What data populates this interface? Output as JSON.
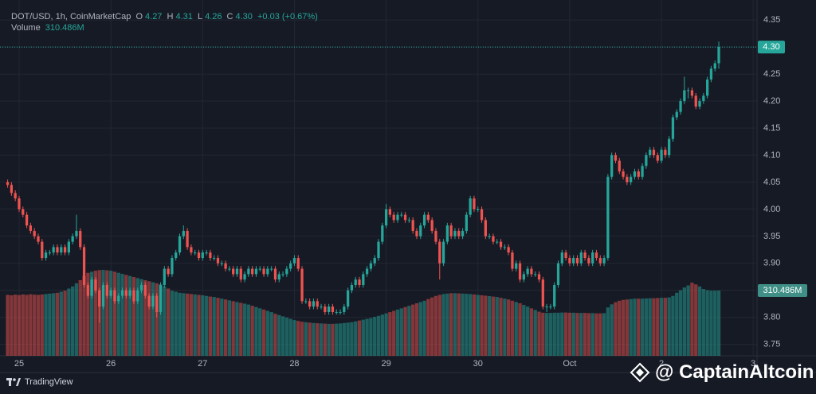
{
  "header": {
    "symbol": "DOT/USD, 1h, CoinMarketCap",
    "ohlc": [
      [
        "O",
        "4.27"
      ],
      [
        "H",
        "4.31"
      ],
      [
        "L",
        "4.26"
      ],
      [
        "C",
        "4.30"
      ]
    ],
    "change": "+0.03 (+0.67%)",
    "volume_title": "Volume",
    "volume": "310.486M"
  },
  "footer": {
    "brand": "TradingView",
    "watermark": "@ CaptainAltcoin"
  },
  "chart_data": {
    "type": "candlestick",
    "up_color": "#26a69a",
    "down_color": "#ef5350",
    "grid": true,
    "xlim": [
      -2,
      196
    ],
    "ylim": [
      3.729,
      4.387
    ],
    "volume_lim": [
      0,
      1000
    ],
    "xticks": [
      {
        "value": 3,
        "label": "25"
      },
      {
        "value": 27,
        "label": "26"
      },
      {
        "value": 51,
        "label": "27"
      },
      {
        "value": 75,
        "label": "28"
      },
      {
        "value": 99,
        "label": "29"
      },
      {
        "value": 123,
        "label": "30"
      },
      {
        "value": 147,
        "label": "Oct"
      },
      {
        "value": 171,
        "label": "2"
      },
      {
        "value": 195,
        "label": "3"
      }
    ],
    "yticks": [
      3.75,
      {
        "value": 3.8,
        "label": "3.80"
      },
      3.85,
      {
        "value": 3.9,
        "label": "3.90"
      },
      3.95,
      {
        "value": 4.0,
        "label": "4.00"
      },
      4.05,
      {
        "value": 4.1,
        "label": "4.10"
      },
      4.15,
      {
        "value": 4.2,
        "label": "4.20"
      },
      4.25,
      {
        "value": 4.3,
        "label": "4.30"
      },
      4.35
    ],
    "last_price": {
      "value": 4.3,
      "label": "4.30"
    },
    "last_volume": {
      "value": 310.486,
      "label": "310.486M"
    },
    "candles": [
      [
        4.05,
        4.055,
        4.04,
        4.045
      ],
      [
        4.045,
        4.05,
        4.025,
        4.03
      ],
      [
        4.03,
        4.035,
        4.015,
        4.02
      ],
      [
        4.02,
        4.025,
        3.995,
        4.0
      ],
      [
        4.0,
        4.005,
        3.985,
        3.99
      ],
      [
        3.99,
        3.995,
        3.965,
        3.97
      ],
      [
        3.97,
        3.975,
        3.955,
        3.96
      ],
      [
        3.96,
        3.965,
        3.945,
        3.95
      ],
      [
        3.95,
        3.955,
        3.935,
        3.94
      ],
      [
        3.94,
        3.945,
        3.905,
        3.91
      ],
      [
        3.91,
        3.925,
        3.905,
        3.92
      ],
      [
        3.92,
        3.925,
        3.915,
        3.92
      ],
      [
        3.92,
        3.935,
        3.915,
        3.93
      ],
      [
        3.93,
        3.935,
        3.915,
        3.92
      ],
      [
        3.92,
        3.935,
        3.915,
        3.93
      ],
      [
        3.93,
        3.935,
        3.915,
        3.92
      ],
      [
        3.92,
        3.945,
        3.915,
        3.94
      ],
      [
        3.94,
        3.955,
        3.935,
        3.95
      ],
      [
        3.95,
        3.99,
        3.945,
        3.96
      ],
      [
        3.96,
        3.965,
        3.925,
        3.93
      ],
      [
        3.93,
        3.935,
        3.855,
        3.86
      ],
      [
        3.86,
        3.865,
        3.835,
        3.84
      ],
      [
        3.84,
        3.875,
        3.835,
        3.87
      ],
      [
        3.87,
        3.875,
        3.845,
        3.85
      ],
      [
        3.85,
        3.855,
        3.79,
        3.82
      ],
      [
        3.82,
        3.865,
        3.815,
        3.86
      ],
      [
        3.86,
        3.865,
        3.835,
        3.84
      ],
      [
        3.84,
        3.855,
        3.835,
        3.85
      ],
      [
        3.85,
        3.855,
        3.825,
        3.83
      ],
      [
        3.83,
        3.845,
        3.825,
        3.84
      ],
      [
        3.84,
        3.855,
        3.835,
        3.85
      ],
      [
        3.85,
        3.855,
        3.835,
        3.84
      ],
      [
        3.84,
        3.855,
        3.835,
        3.85
      ],
      [
        3.85,
        3.855,
        3.825,
        3.83
      ],
      [
        3.83,
        3.855,
        3.825,
        3.85
      ],
      [
        3.85,
        3.865,
        3.845,
        3.86
      ],
      [
        3.86,
        3.865,
        3.835,
        3.84
      ],
      [
        3.84,
        3.845,
        3.815,
        3.82
      ],
      [
        3.82,
        3.845,
        3.815,
        3.84
      ],
      [
        3.84,
        3.845,
        3.8,
        3.81
      ],
      [
        3.81,
        3.865,
        3.805,
        3.86
      ],
      [
        3.86,
        3.895,
        3.855,
        3.89
      ],
      [
        3.89,
        3.895,
        3.875,
        3.88
      ],
      [
        3.88,
        3.915,
        3.875,
        3.91
      ],
      [
        3.91,
        3.925,
        3.905,
        3.92
      ],
      [
        3.92,
        3.955,
        3.915,
        3.95
      ],
      [
        3.95,
        3.97,
        3.945,
        3.96
      ],
      [
        3.96,
        3.965,
        3.925,
        3.93
      ],
      [
        3.93,
        3.935,
        3.915,
        3.92
      ],
      [
        3.92,
        3.925,
        3.915,
        3.92
      ],
      [
        3.92,
        3.925,
        3.905,
        3.91
      ],
      [
        3.91,
        3.925,
        3.905,
        3.92
      ],
      [
        3.92,
        3.925,
        3.915,
        3.92
      ],
      [
        3.92,
        3.925,
        3.905,
        3.91
      ],
      [
        3.91,
        3.915,
        3.905,
        3.91
      ],
      [
        3.91,
        3.915,
        3.895,
        3.9
      ],
      [
        3.9,
        3.905,
        3.895,
        3.9
      ],
      [
        3.9,
        3.905,
        3.885,
        3.89
      ],
      [
        3.89,
        3.895,
        3.885,
        3.89
      ],
      [
        3.89,
        3.895,
        3.875,
        3.88
      ],
      [
        3.88,
        3.895,
        3.875,
        3.89
      ],
      [
        3.89,
        3.895,
        3.865,
        3.87
      ],
      [
        3.87,
        3.885,
        3.865,
        3.88
      ],
      [
        3.88,
        3.895,
        3.875,
        3.89
      ],
      [
        3.89,
        3.895,
        3.875,
        3.88
      ],
      [
        3.88,
        3.895,
        3.875,
        3.89
      ],
      [
        3.89,
        3.895,
        3.885,
        3.89
      ],
      [
        3.89,
        3.895,
        3.875,
        3.88
      ],
      [
        3.88,
        3.895,
        3.875,
        3.89
      ],
      [
        3.89,
        3.895,
        3.885,
        3.89
      ],
      [
        3.89,
        3.895,
        3.865,
        3.87
      ],
      [
        3.87,
        3.885,
        3.865,
        3.88
      ],
      [
        3.88,
        3.885,
        3.875,
        3.88
      ],
      [
        3.88,
        3.895,
        3.875,
        3.89
      ],
      [
        3.89,
        3.905,
        3.885,
        3.9
      ],
      [
        3.9,
        3.915,
        3.895,
        3.91
      ],
      [
        3.91,
        3.915,
        3.885,
        3.89
      ],
      [
        3.89,
        3.895,
        3.825,
        3.83
      ],
      [
        3.83,
        3.835,
        3.825,
        3.83
      ],
      [
        3.83,
        3.835,
        3.815,
        3.82
      ],
      [
        3.82,
        3.835,
        3.815,
        3.83
      ],
      [
        3.83,
        3.835,
        3.815,
        3.82
      ],
      [
        3.82,
        3.825,
        3.815,
        3.82
      ],
      [
        3.82,
        3.825,
        3.805,
        3.81
      ],
      [
        3.81,
        3.825,
        3.805,
        3.82
      ],
      [
        3.82,
        3.825,
        3.805,
        3.81
      ],
      [
        3.81,
        3.815,
        3.805,
        3.81
      ],
      [
        3.81,
        3.815,
        3.805,
        3.81
      ],
      [
        3.81,
        3.825,
        3.805,
        3.82
      ],
      [
        3.82,
        3.855,
        3.815,
        3.85
      ],
      [
        3.85,
        3.865,
        3.845,
        3.86
      ],
      [
        3.86,
        3.875,
        3.855,
        3.87
      ],
      [
        3.87,
        3.875,
        3.855,
        3.86
      ],
      [
        3.86,
        3.885,
        3.855,
        3.88
      ],
      [
        3.88,
        3.895,
        3.875,
        3.89
      ],
      [
        3.89,
        3.905,
        3.885,
        3.9
      ],
      [
        3.9,
        3.915,
        3.895,
        3.91
      ],
      [
        3.91,
        3.945,
        3.905,
        3.94
      ],
      [
        3.94,
        3.975,
        3.935,
        3.97
      ],
      [
        3.97,
        4.01,
        3.965,
        4.0
      ],
      [
        4.0,
        4.005,
        3.985,
        3.99
      ],
      [
        3.99,
        3.995,
        3.975,
        3.98
      ],
      [
        3.98,
        3.995,
        3.975,
        3.99
      ],
      [
        3.99,
        3.995,
        3.985,
        3.99
      ],
      [
        3.99,
        3.995,
        3.975,
        3.98
      ],
      [
        3.98,
        3.985,
        3.975,
        3.98
      ],
      [
        3.98,
        3.985,
        3.955,
        3.96
      ],
      [
        3.96,
        3.965,
        3.945,
        3.95
      ],
      [
        3.95,
        3.975,
        3.945,
        3.97
      ],
      [
        3.97,
        3.995,
        3.965,
        3.99
      ],
      [
        3.99,
        3.995,
        3.975,
        3.98
      ],
      [
        3.98,
        3.985,
        3.955,
        3.96
      ],
      [
        3.96,
        3.965,
        3.935,
        3.94
      ],
      [
        3.94,
        3.945,
        3.87,
        3.9
      ],
      [
        3.9,
        3.945,
        3.895,
        3.94
      ],
      [
        3.94,
        3.975,
        3.935,
        3.97
      ],
      [
        3.97,
        3.975,
        3.945,
        3.95
      ],
      [
        3.95,
        3.965,
        3.945,
        3.96
      ],
      [
        3.96,
        3.965,
        3.945,
        3.95
      ],
      [
        3.95,
        3.965,
        3.945,
        3.96
      ],
      [
        3.96,
        3.995,
        3.955,
        3.99
      ],
      [
        3.99,
        4.025,
        3.985,
        4.02
      ],
      [
        4.02,
        4.025,
        3.995,
        4.0
      ],
      [
        4.0,
        4.005,
        3.995,
        4.0
      ],
      [
        4.0,
        4.005,
        3.975,
        3.98
      ],
      [
        3.98,
        3.985,
        3.945,
        3.95
      ],
      [
        3.95,
        3.955,
        3.945,
        3.95
      ],
      [
        3.95,
        3.955,
        3.935,
        3.94
      ],
      [
        3.94,
        3.945,
        3.935,
        3.94
      ],
      [
        3.94,
        3.945,
        3.925,
        3.93
      ],
      [
        3.93,
        3.935,
        3.925,
        3.93
      ],
      [
        3.93,
        3.935,
        3.915,
        3.92
      ],
      [
        3.92,
        3.925,
        3.885,
        3.89
      ],
      [
        3.89,
        3.905,
        3.885,
        3.9
      ],
      [
        3.9,
        3.905,
        3.865,
        3.87
      ],
      [
        3.87,
        3.885,
        3.865,
        3.88
      ],
      [
        3.88,
        3.895,
        3.875,
        3.89
      ],
      [
        3.89,
        3.895,
        3.875,
        3.88
      ],
      [
        3.88,
        3.885,
        3.875,
        3.88
      ],
      [
        3.88,
        3.885,
        3.865,
        3.87
      ],
      [
        3.87,
        3.875,
        3.815,
        3.82
      ],
      [
        3.82,
        3.825,
        3.81,
        3.82
      ],
      [
        3.82,
        3.825,
        3.815,
        3.82
      ],
      [
        3.82,
        3.865,
        3.815,
        3.86
      ],
      [
        3.86,
        3.905,
        3.855,
        3.9
      ],
      [
        3.9,
        3.925,
        3.895,
        3.92
      ],
      [
        3.92,
        3.925,
        3.905,
        3.91
      ],
      [
        3.91,
        3.915,
        3.895,
        3.9
      ],
      [
        3.9,
        3.915,
        3.895,
        3.91
      ],
      [
        3.91,
        3.915,
        3.895,
        3.9
      ],
      [
        3.9,
        3.925,
        3.895,
        3.92
      ],
      [
        3.92,
        3.925,
        3.905,
        3.91
      ],
      [
        3.91,
        3.915,
        3.895,
        3.9
      ],
      [
        3.9,
        3.925,
        3.895,
        3.92
      ],
      [
        3.92,
        3.925,
        3.905,
        3.91
      ],
      [
        3.91,
        3.915,
        3.895,
        3.9
      ],
      [
        3.9,
        3.915,
        3.895,
        3.91
      ],
      [
        3.91,
        4.065,
        3.905,
        4.06
      ],
      [
        4.06,
        4.105,
        4.055,
        4.1
      ],
      [
        4.1,
        4.105,
        4.085,
        4.09
      ],
      [
        4.09,
        4.095,
        4.065,
        4.07
      ],
      [
        4.07,
        4.075,
        4.055,
        4.06
      ],
      [
        4.06,
        4.065,
        4.045,
        4.05
      ],
      [
        4.05,
        4.065,
        4.045,
        4.06
      ],
      [
        4.06,
        4.075,
        4.055,
        4.07
      ],
      [
        4.07,
        4.075,
        4.055,
        4.06
      ],
      [
        4.06,
        4.085,
        4.055,
        4.08
      ],
      [
        4.08,
        4.105,
        4.075,
        4.1
      ],
      [
        4.1,
        4.115,
        4.095,
        4.11
      ],
      [
        4.11,
        4.115,
        4.095,
        4.1
      ],
      [
        4.1,
        4.105,
        4.085,
        4.09
      ],
      [
        4.09,
        4.115,
        4.085,
        4.11
      ],
      [
        4.11,
        4.115,
        4.095,
        4.1
      ],
      [
        4.1,
        4.135,
        4.095,
        4.13
      ],
      [
        4.13,
        4.175,
        4.125,
        4.17
      ],
      [
        4.17,
        4.185,
        4.165,
        4.18
      ],
      [
        4.18,
        4.205,
        4.175,
        4.2
      ],
      [
        4.2,
        4.245,
        4.195,
        4.22
      ],
      [
        4.22,
        4.225,
        4.205,
        4.22
      ],
      [
        4.22,
        4.225,
        4.205,
        4.21
      ],
      [
        4.21,
        4.215,
        4.185,
        4.19
      ],
      [
        4.19,
        4.205,
        4.185,
        4.2
      ],
      [
        4.2,
        4.215,
        4.195,
        4.21
      ],
      [
        4.21,
        4.245,
        4.205,
        4.24
      ],
      [
        4.24,
        4.265,
        4.235,
        4.26
      ],
      [
        4.26,
        4.275,
        4.255,
        4.27
      ],
      [
        4.27,
        4.31,
        4.26,
        4.3
      ]
    ],
    "volume": [
      290,
      288,
      291,
      289,
      292,
      290,
      293,
      291,
      290,
      292,
      294,
      296,
      298,
      300,
      305,
      310,
      320,
      330,
      345,
      360,
      380,
      395,
      400,
      405,
      408,
      409,
      407,
      405,
      400,
      395,
      390,
      385,
      380,
      375,
      370,
      365,
      360,
      355,
      350,
      345,
      340,
      330,
      320,
      310,
      305,
      300,
      298,
      296,
      294,
      292,
      290,
      288,
      285,
      282,
      280,
      276,
      272,
      268,
      264,
      260,
      256,
      252,
      248,
      244,
      238,
      232,
      226,
      220,
      214,
      208,
      200,
      194,
      188,
      182,
      176,
      170,
      166,
      162,
      160,
      158,
      156,
      155,
      154,
      153,
      152,
      152,
      153,
      154,
      156,
      158,
      160,
      164,
      168,
      172,
      176,
      180,
      185,
      190,
      196,
      202,
      208,
      214,
      220,
      226,
      232,
      238,
      244,
      250,
      256,
      262,
      270,
      278,
      285,
      290,
      294,
      296,
      298,
      298,
      297,
      296,
      295,
      294,
      292,
      290,
      288,
      286,
      284,
      282,
      280,
      276,
      272,
      268,
      262,
      256,
      250,
      242,
      234,
      226,
      218,
      210,
      205,
      204,
      204,
      205,
      205,
      206,
      206,
      205,
      205,
      204,
      204,
      204,
      203,
      203,
      202,
      202,
      203,
      230,
      245,
      255,
      262,
      266,
      268,
      270,
      272,
      272,
      272,
      273,
      274,
      274,
      275,
      276,
      276,
      278,
      285,
      300,
      312,
      325,
      335,
      348,
      340,
      330,
      318,
      312,
      310,
      310,
      310.486
    ]
  }
}
